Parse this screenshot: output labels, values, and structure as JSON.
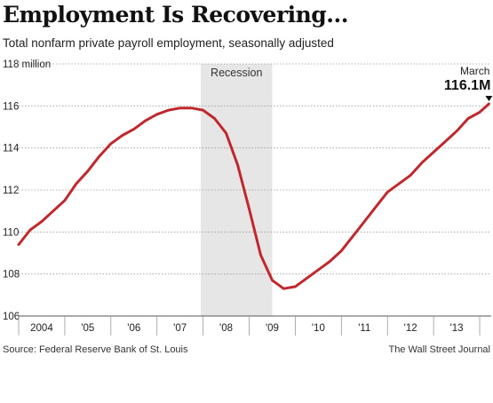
{
  "chart_data": {
    "type": "line",
    "title": "Employment Is Recovering...",
    "subtitle": "Total nonfarm private payroll employment, seasonally adjusted",
    "ylabel": "",
    "xlabel": "",
    "y_unit_label": "million",
    "ylim": [
      106,
      118
    ],
    "y_ticks": [
      106,
      108,
      110,
      112,
      114,
      116,
      118
    ],
    "x_tick_labels": [
      "2004",
      "'05",
      "'06",
      "'07",
      "'08",
      "'09",
      "'10",
      "'11",
      "'12",
      "'13"
    ],
    "xlim": [
      2004.0,
      2014.25
    ],
    "grid": true,
    "shaded_region": {
      "label": "Recession",
      "x_start": 2007.95,
      "x_end": 2009.5
    },
    "annotation": {
      "label": "March",
      "value_label": "116.1M",
      "x": 2014.2,
      "y": 116.1
    },
    "series": [
      {
        "name": "",
        "color": "#c0282d",
        "x": [
          2004.0,
          2004.25,
          2004.5,
          2004.75,
          2005.0,
          2005.25,
          2005.5,
          2005.75,
          2006.0,
          2006.25,
          2006.5,
          2006.75,
          2007.0,
          2007.25,
          2007.5,
          2007.75,
          2008.0,
          2008.25,
          2008.5,
          2008.75,
          2009.0,
          2009.25,
          2009.5,
          2009.75,
          2010.0,
          2010.25,
          2010.5,
          2010.75,
          2011.0,
          2011.25,
          2011.5,
          2011.75,
          2012.0,
          2012.25,
          2012.5,
          2012.75,
          2013.0,
          2013.25,
          2013.5,
          2013.75,
          2014.0,
          2014.2
        ],
        "values": [
          109.4,
          110.1,
          110.5,
          111.0,
          111.5,
          112.3,
          112.9,
          113.6,
          114.2,
          114.6,
          114.9,
          115.3,
          115.6,
          115.8,
          115.9,
          115.9,
          115.8,
          115.4,
          114.7,
          113.2,
          111.1,
          108.9,
          107.7,
          107.3,
          107.4,
          107.8,
          108.2,
          108.6,
          109.1,
          109.8,
          110.5,
          111.2,
          111.9,
          112.3,
          112.7,
          113.3,
          113.8,
          114.3,
          114.8,
          115.4,
          115.7,
          116.1
        ]
      }
    ]
  },
  "footer": {
    "source": "Source: Federal Reserve Bank of St. Louis",
    "credit": "The Wall Street Journal"
  }
}
